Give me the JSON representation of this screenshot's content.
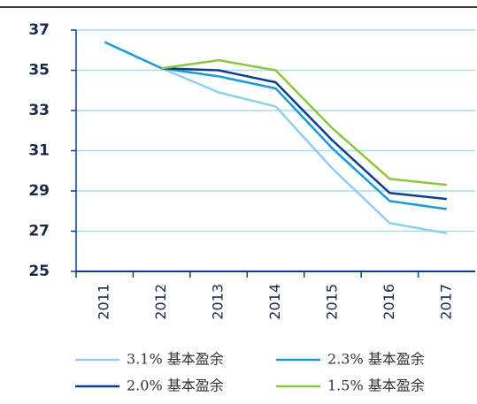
{
  "chart_data": {
    "type": "line",
    "categories": [
      "2011",
      "2012",
      "2013",
      "2014",
      "2015",
      "2016",
      "2017"
    ],
    "series": [
      {
        "name": "3.1% 基本盈余",
        "color": "#8dd0ec",
        "values": [
          null,
          35.1,
          33.9,
          33.2,
          30.1,
          27.4,
          26.9
        ]
      },
      {
        "name": "2.3% 基本盈余",
        "color": "#1a9ad6",
        "values": [
          36.4,
          35.1,
          34.7,
          34.1,
          31.1,
          28.5,
          28.1
        ]
      },
      {
        "name": "2.0% 基本盈余",
        "color": "#0b3f8c",
        "values": [
          null,
          35.1,
          35.0,
          34.4,
          31.5,
          28.9,
          28.6
        ]
      },
      {
        "name": "1.5% 基本盈余",
        "color": "#8dc63f",
        "values": [
          null,
          35.1,
          35.5,
          35.0,
          32.1,
          29.6,
          29.3
        ]
      }
    ],
    "ylim": [
      25,
      37
    ],
    "yticks": [
      25,
      27,
      29,
      31,
      33,
      35,
      37
    ],
    "grid": true
  }
}
